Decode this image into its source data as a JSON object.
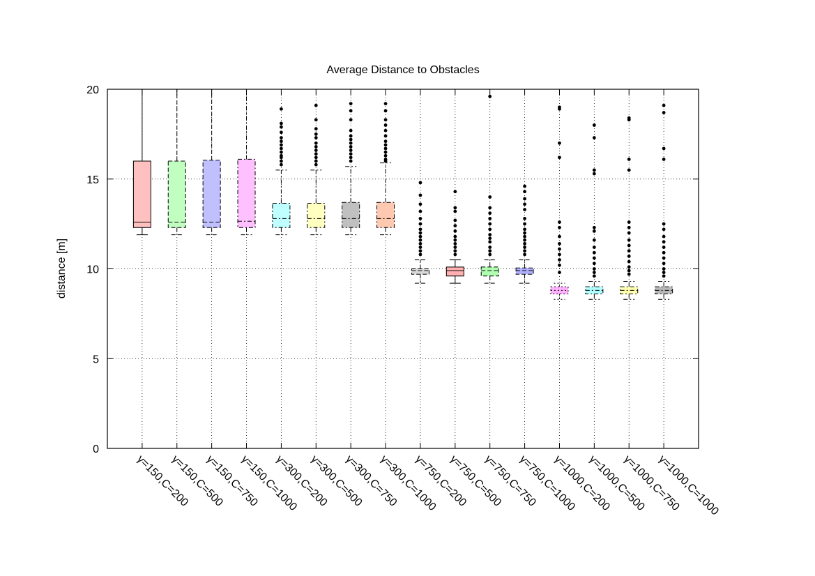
{
  "chart_data": {
    "type": "box",
    "title": "Average Distance to Obstacles",
    "xlabel": "",
    "ylabel": "distance [m]",
    "ylim": [
      0,
      20
    ],
    "yticks": [
      0,
      5,
      10,
      15,
      20
    ],
    "grid": true,
    "categories": [
      "γ=150,C=200",
      "γ=150,C=500",
      "γ=150,C=750",
      "γ=150,C=1000",
      "γ=300,C=200",
      "γ=300,C=500",
      "γ=300,C=750",
      "γ=300,C=1000",
      "γ=750,C=200",
      "γ=750,C=500",
      "γ=750,C=750",
      "γ=750,C=1000",
      "γ=1000,C=200",
      "γ=1000,C=500",
      "γ=1000,C=750",
      "γ=1000,C=1000"
    ],
    "boxes": [
      {
        "whisker_low": 11.9,
        "q1": 12.3,
        "median": 12.6,
        "q3": 16.0,
        "whisker_high": 20.0,
        "outliers": [],
        "color": "#ffc0c0",
        "line": "solid"
      },
      {
        "whisker_low": 11.9,
        "q1": 12.3,
        "median": 12.6,
        "q3": 16.0,
        "whisker_high": 20.0,
        "outliers": [],
        "color": "#c0ffc0",
        "line": "dash"
      },
      {
        "whisker_low": 11.9,
        "q1": 12.3,
        "median": 12.6,
        "q3": 16.05,
        "whisker_high": 20.0,
        "outliers": [],
        "color": "#c0c0ff",
        "line": "dash"
      },
      {
        "whisker_low": 11.9,
        "q1": 12.3,
        "median": 12.65,
        "q3": 16.1,
        "whisker_high": 20.0,
        "outliers": [],
        "color": "#ffc0ff",
        "line": "dashdot"
      },
      {
        "whisker_low": 11.9,
        "q1": 12.3,
        "median": 12.8,
        "q3": 13.65,
        "whisker_high": 15.5,
        "outliers": [
          15.8,
          16.0,
          16.2,
          16.3,
          16.5,
          16.7,
          16.9,
          17.1,
          17.3,
          17.6,
          17.9,
          18.1,
          18.9
        ],
        "color": "#c0ffff",
        "line": "dashdot"
      },
      {
        "whisker_low": 11.9,
        "q1": 12.3,
        "median": 12.8,
        "q3": 13.65,
        "whisker_high": 15.5,
        "outliers": [
          15.8,
          16.0,
          16.2,
          16.4,
          16.6,
          16.8,
          17.0,
          17.3,
          17.5,
          17.8,
          18.3,
          19.1
        ],
        "color": "#ffffc0",
        "line": "dashdot"
      },
      {
        "whisker_low": 11.9,
        "q1": 12.3,
        "median": 12.8,
        "q3": 13.7,
        "whisker_high": 15.7,
        "outliers": [
          16.0,
          16.2,
          16.4,
          16.6,
          16.8,
          17.0,
          17.2,
          17.4,
          17.7,
          18.3,
          18.8,
          19.2
        ],
        "color": "#c0c0c0",
        "line": "dashdot"
      },
      {
        "whisker_low": 11.9,
        "q1": 12.3,
        "median": 12.8,
        "q3": 13.7,
        "whisker_high": 15.9,
        "outliers": [
          16.0,
          16.1,
          16.3,
          16.5,
          16.7,
          16.9,
          17.1,
          17.4,
          17.7,
          18.0,
          18.3,
          18.8,
          19.2
        ],
        "color": "#ffc8b0",
        "line": "dashdot"
      },
      {
        "whisker_low": 9.2,
        "q1": 9.7,
        "median": 9.9,
        "q3": 10.0,
        "whisker_high": 10.5,
        "outliers": [
          10.8,
          11.0,
          11.2,
          11.4,
          11.6,
          11.8,
          12.0,
          12.2,
          12.5,
          12.8,
          13.2,
          13.6,
          14.1,
          14.8
        ],
        "color": "#d8d8d8",
        "line": "dash"
      },
      {
        "whisker_low": 9.2,
        "q1": 9.6,
        "median": 9.9,
        "q3": 10.1,
        "whisker_high": 10.5,
        "outliers": [
          10.8,
          11.0,
          11.2,
          11.4,
          11.6,
          11.8,
          12.1,
          12.4,
          12.7,
          13.2,
          13.4,
          14.3
        ],
        "color": "#ffb0b0",
        "line": "solid"
      },
      {
        "whisker_low": 9.2,
        "q1": 9.6,
        "median": 9.9,
        "q3": 10.1,
        "whisker_high": 10.5,
        "outliers": [
          10.8,
          11.0,
          11.2,
          11.5,
          11.7,
          11.9,
          12.2,
          12.5,
          12.8,
          13.1,
          13.4,
          14.0,
          19.6
        ],
        "color": "#b0ffb0",
        "line": "dash"
      },
      {
        "whisker_low": 9.2,
        "q1": 9.7,
        "median": 9.9,
        "q3": 10.05,
        "whisker_high": 10.5,
        "outliers": [
          10.8,
          11.0,
          11.2,
          11.4,
          11.6,
          11.8,
          12.0,
          12.2,
          12.5,
          12.8,
          13.3,
          13.6,
          13.9,
          14.3,
          14.6
        ],
        "color": "#b0b0ff",
        "line": "dash"
      },
      {
        "whisker_low": 8.3,
        "q1": 8.6,
        "median": 8.8,
        "q3": 9.0,
        "whisker_high": 9.2,
        "outliers": [
          9.8,
          10.2,
          10.5,
          10.8,
          11.1,
          11.4,
          11.8,
          12.3,
          12.6,
          16.2,
          17.0,
          18.9,
          19.0
        ],
        "color": "#ffb0ff",
        "line": "dot"
      },
      {
        "whisker_low": 8.3,
        "q1": 8.6,
        "median": 8.8,
        "q3": 9.0,
        "whisker_high": 9.3,
        "outliers": [
          9.6,
          9.8,
          10.0,
          10.3,
          10.6,
          10.9,
          11.2,
          11.6,
          12.1,
          12.3,
          15.3,
          15.5,
          17.3,
          18.0
        ],
        "color": "#b0ffff",
        "line": "dashdot"
      },
      {
        "whisker_low": 8.3,
        "q1": 8.6,
        "median": 8.8,
        "q3": 9.0,
        "whisker_high": 9.3,
        "outliers": [
          9.7,
          9.9,
          10.1,
          10.4,
          10.7,
          11.0,
          11.3,
          11.6,
          12.0,
          12.3,
          12.6,
          15.5,
          16.1,
          18.3,
          18.4
        ],
        "color": "#ffffb0",
        "line": "dashdot"
      },
      {
        "whisker_low": 8.3,
        "q1": 8.6,
        "median": 8.8,
        "q3": 9.0,
        "whisker_high": 9.3,
        "outliers": [
          9.6,
          9.8,
          10.0,
          10.3,
          10.6,
          10.9,
          11.2,
          11.5,
          11.8,
          12.2,
          12.5,
          16.1,
          16.7,
          18.7,
          19.1
        ],
        "color": "#b8b8b8",
        "line": "dashdot"
      }
    ]
  }
}
